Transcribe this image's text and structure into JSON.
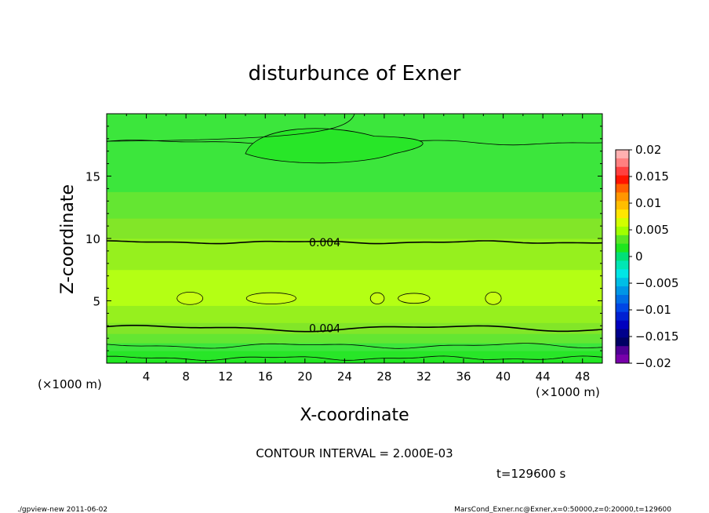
{
  "chart_data": {
    "type": "heatmap",
    "title": "disturbunce of Exner",
    "xlabel": "X-coordinate",
    "ylabel": "Z-coordinate",
    "x_unit": "(×1000 m)",
    "x_unit_right": "(×1000 m)",
    "y_unit": "(×1000 m)",
    "xlim": [
      0,
      50
    ],
    "ylim": [
      0,
      20
    ],
    "x_ticks": [
      "4",
      "8",
      "12",
      "16",
      "20",
      "24",
      "28",
      "32",
      "36",
      "40",
      "44",
      "48"
    ],
    "y_ticks": [
      "5",
      "10",
      "15"
    ],
    "z_profile": {
      "z": [
        0,
        0.5,
        1.0,
        1.5,
        2.0,
        3.0,
        4.0,
        5.0,
        6.0,
        7.0,
        8.0,
        9.0,
        10.0,
        11.0,
        12.0,
        13.0,
        14.0,
        15.0,
        16.0,
        17.0,
        18.0,
        19.0,
        20.0
      ],
      "value": [
        -0.0005,
        0.0005,
        0.001,
        0.0018,
        0.0025,
        0.0038,
        0.0046,
        0.0052,
        0.0054,
        0.0052,
        0.0048,
        0.0044,
        0.004,
        0.0034,
        0.0028,
        0.0023,
        0.0019,
        0.0016,
        0.0014,
        0.0013,
        0.0011,
        0.0012,
        0.0013
      ]
    },
    "contour_labels": [
      {
        "text": "0.004",
        "x": 22.0,
        "z": 9.7
      },
      {
        "text": "0.004",
        "x": 22.0,
        "z": 2.8
      }
    ],
    "contour_interval_text": "CONTOUR INTERVAL = 2.000E-03",
    "colorbar": {
      "levels": [
        "0.02",
        "0.015",
        "0.01",
        "0.005",
        "0",
        "−0.005",
        "−0.01",
        "−0.015",
        "−0.02"
      ],
      "colors": [
        "#ffb0b0",
        "#ff8080",
        "#ff4040",
        "#ff1400",
        "#ff6000",
        "#ff9600",
        "#ffbe00",
        "#ffe600",
        "#d2ff00",
        "#a0ff00",
        "#58e624",
        "#1ee61e",
        "#00e078",
        "#00e6b4",
        "#00e6e6",
        "#00bee6",
        "#0096e6",
        "#006ee6",
        "#0046e6",
        "#0020d2",
        "#0000be",
        "#00008c",
        "#000064",
        "#500096",
        "#7800aa"
      ]
    },
    "time_text": "t=129600 s",
    "footer_left": "./gpview-new  2011-06-02",
    "footer_right": "MarsCond_Exner.nc@Exner,x=0:50000,z=0:20000,t=129600"
  }
}
